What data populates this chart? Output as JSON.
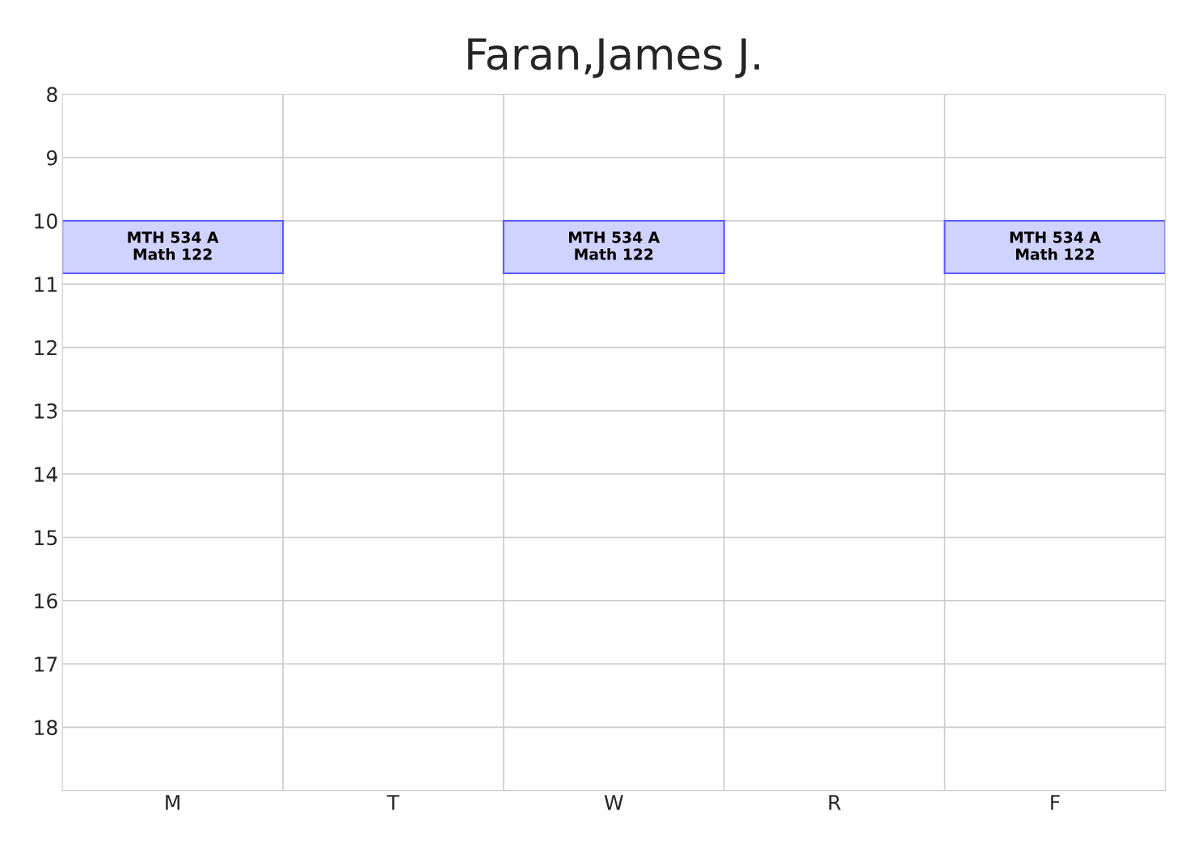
{
  "chart_data": {
    "type": "bar",
    "title": "Faran,James J.",
    "categories": [
      "M",
      "T",
      "W",
      "R",
      "F"
    ],
    "base": [
      10,
      null,
      10,
      null,
      10
    ],
    "values": [
      0.83,
      null,
      0.83,
      null,
      0.83
    ],
    "color": "#d0d2ff",
    "ylim": [
      19,
      8
    ],
    "yticks": [
      8,
      9,
      10,
      11,
      12,
      13,
      14,
      15,
      16,
      17,
      18
    ],
    "grid": true,
    "value_labels": [
      "MTH 534 A\nMath 122",
      null,
      "MTH 534 A\nMath 122",
      null,
      "MTH 534 A\nMath 122"
    ]
  }
}
